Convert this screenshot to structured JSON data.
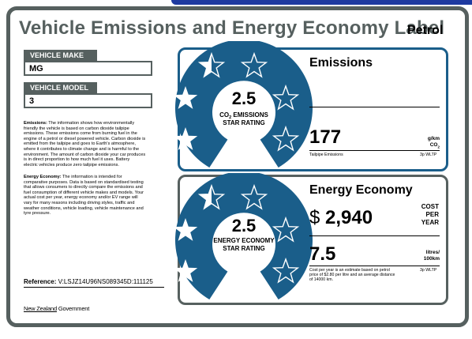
{
  "title": "Vehicle Emissions and Energy Economy Label",
  "fuel_type": "Petrol",
  "vehicle_make": {
    "label": "VEHICLE MAKE",
    "value": "MG"
  },
  "vehicle_model": {
    "label": "VEHICLE MODEL",
    "value": "3"
  },
  "emissions_info": {
    "heading": "Emissions:",
    "lines": [
      "The information shows how environmentally",
      "friendly the vehicle is based on carbon dioxide tailpipe",
      "emissions. These emissions come from burning fuel in the",
      "engine of a petrol or diesel powered vehicle. Carbon dioxide is",
      "emitted from the tailpipe and goes to Earth's atmosphere,",
      "where it contributes to climate change and is harmful to the",
      "environment. The amount of carbon dioxide your car produces",
      "is in direct proportion to how much fuel it uses. Battery",
      "electric vehicles produce zero tailpipe emissions."
    ]
  },
  "energy_info": {
    "heading": "Energy Economy:",
    "lines": [
      "The information is intended for",
      "comparative purposes. Data is based on standardised testing",
      "that allows consumers to directly compare the emissions and",
      "fuel consumption of different vehicle makes and models. Your",
      "actual cost per year, energy economy and/or EV range will",
      "vary for many reasons including driving styles, traffic and",
      "weather conditions, vehicle loading, vehicle maintenance and",
      "tyre pressure."
    ]
  },
  "reference": {
    "label": "Reference:",
    "value": "V:LSJZ14U96NS089345D:111125"
  },
  "footer": {
    "part1": "New Zealand",
    "part2": " Government"
  },
  "emissions": {
    "title": "Emissions",
    "rating": "2.5",
    "rating_label_1": "CO",
    "rating_label_sub": "2",
    "rating_label_2": " EMISSIONS",
    "rating_label_3": "STAR RATING",
    "stars": 2.5,
    "value": "177",
    "unit_1": "g/km",
    "unit_2": "CO",
    "unit_2_sub": "2",
    "note_left": "Tailpipe Emissions",
    "note_right": "3p WLTP"
  },
  "energy": {
    "title": "Energy Economy",
    "rating": "2.5",
    "rating_label_1": "ENERGY ECONOMY",
    "rating_label_2": "STAR RATING",
    "stars": 2.5,
    "currency": "$",
    "cost": "2,940",
    "cost_label_1": "COST",
    "cost_label_2": "PER",
    "cost_label_3": "YEAR",
    "economy_value": "7.5",
    "economy_unit_1": "litres/",
    "economy_unit_2": "100km",
    "note_line_1": "Cost per year is an estimate based on petrol",
    "note_line_2": "price of  $2.80 per litre and an average distance",
    "note_line_3": "of 14000 km.",
    "note_right": "3p WLTP"
  },
  "colors": {
    "accent_blue": "#1a5e8a",
    "frame_gray": "#56605f"
  }
}
